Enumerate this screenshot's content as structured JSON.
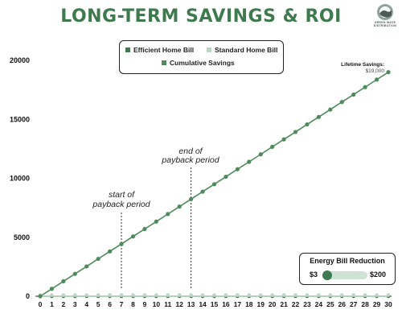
{
  "header": {
    "title": "LONG-TERM SAVINGS & ROI",
    "logo_text_line1": "GREEN WAVE",
    "logo_text_line2": "DISTRIBUTION"
  },
  "legend": {
    "efficient_label": "Efficient Home Bill",
    "standard_label": "Standard Home Bill",
    "cumulative_label": "Cumulative Savings"
  },
  "annotations": {
    "start_line1": "start of",
    "start_line2": "payback period",
    "end_line1": "end of",
    "end_line2": "payback period",
    "lifetime_label": "Lifetime Savings:",
    "lifetime_value": "$19,000"
  },
  "slider": {
    "title": "Energy Bill Reduction",
    "min_label": "$3",
    "max_label": "$200",
    "value_fraction": 0.0
  },
  "colors": {
    "title": "#3f7a4e",
    "efficient": "#3f7a4e",
    "standard": "#b9d7c3",
    "cumulative": "#4f8a5c"
  },
  "chart_data": {
    "type": "line",
    "title": "LONG-TERM SAVINGS & ROI",
    "xlabel": "",
    "ylabel": "",
    "x": [
      0,
      1,
      2,
      3,
      4,
      5,
      6,
      7,
      8,
      9,
      10,
      11,
      12,
      13,
      14,
      15,
      16,
      17,
      18,
      19,
      20,
      21,
      22,
      23,
      24,
      25,
      26,
      27,
      28,
      29,
      30
    ],
    "xlim": [
      0,
      30
    ],
    "ylim": [
      0,
      20000
    ],
    "yticks": [
      0,
      5000,
      10000,
      15000,
      20000
    ],
    "legend_position": "top-center",
    "grid": false,
    "series": [
      {
        "name": "Efficient Home Bill",
        "values": [
          0,
          0,
          0,
          0,
          0,
          0,
          0,
          0,
          0,
          0,
          0,
          0,
          0,
          0,
          0,
          0,
          0,
          0,
          0,
          0,
          0,
          0,
          0,
          0,
          0,
          0,
          0,
          0,
          0,
          0,
          0
        ]
      },
      {
        "name": "Standard Home Bill",
        "values": [
          0,
          0,
          0,
          0,
          0,
          0,
          0,
          0,
          0,
          0,
          0,
          0,
          0,
          0,
          0,
          0,
          0,
          0,
          0,
          0,
          0,
          0,
          0,
          0,
          0,
          0,
          0,
          0,
          0,
          0,
          0
        ]
      },
      {
        "name": "Cumulative Savings",
        "values": [
          0,
          630,
          1270,
          1900,
          2530,
          3170,
          3800,
          4430,
          5070,
          5700,
          6330,
          6970,
          7600,
          8230,
          8870,
          9500,
          10130,
          10770,
          11400,
          12030,
          12670,
          13300,
          13930,
          14570,
          15200,
          15830,
          16470,
          17100,
          17730,
          18370,
          19000
        ]
      }
    ],
    "markers": [
      {
        "x": 7,
        "label": "start of payback period"
      },
      {
        "x": 13,
        "label": "end of payback period"
      }
    ]
  }
}
